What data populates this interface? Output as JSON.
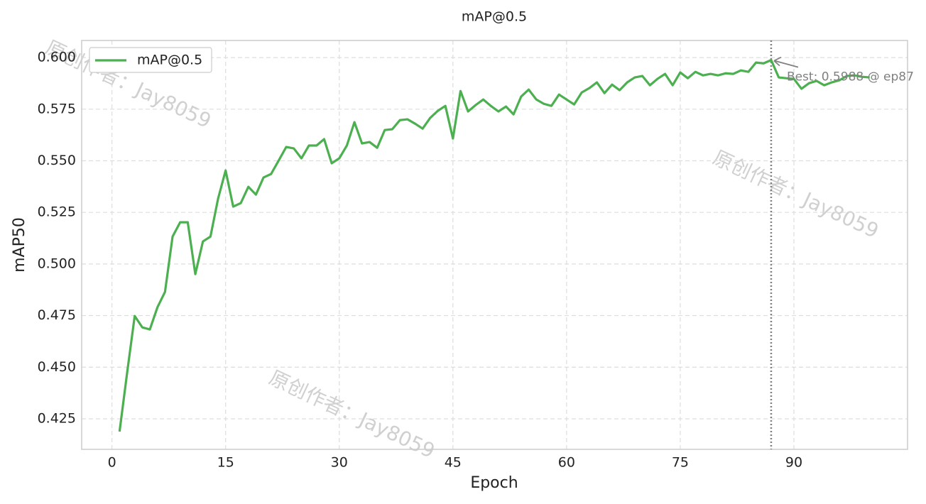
{
  "chart_data": {
    "type": "line",
    "title": "mAP@0.5",
    "xlabel": "Epoch",
    "ylabel": "mAP50",
    "x": [
      1,
      2,
      3,
      4,
      5,
      6,
      7,
      8,
      9,
      10,
      11,
      12,
      13,
      14,
      15,
      16,
      17,
      18,
      19,
      20,
      21,
      22,
      23,
      24,
      25,
      26,
      27,
      28,
      29,
      30,
      31,
      32,
      33,
      34,
      35,
      36,
      37,
      38,
      39,
      40,
      41,
      42,
      43,
      44,
      45,
      46,
      47,
      48,
      49,
      50,
      51,
      52,
      53,
      54,
      55,
      56,
      57,
      58,
      59,
      60,
      61,
      62,
      63,
      64,
      65,
      66,
      67,
      68,
      69,
      70,
      71,
      72,
      73,
      74,
      75,
      76,
      77,
      78,
      79,
      80,
      81,
      82,
      83,
      84,
      85,
      86,
      87,
      88,
      89,
      90,
      91,
      92,
      93,
      94,
      95,
      96,
      97,
      98,
      99,
      100
    ],
    "series": [
      {
        "name": "mAP@0.5",
        "color": "#4caf50",
        "values": [
          0.4188,
          0.4473,
          0.4748,
          0.4693,
          0.4683,
          0.479,
          0.4865,
          0.5133,
          0.5202,
          0.5202,
          0.4951,
          0.5109,
          0.5133,
          0.5316,
          0.5453,
          0.5278,
          0.5295,
          0.5374,
          0.5336,
          0.5419,
          0.5436,
          0.5501,
          0.5567,
          0.556,
          0.5512,
          0.5574,
          0.5574,
          0.5605,
          0.5488,
          0.5512,
          0.5574,
          0.5687,
          0.5584,
          0.5591,
          0.5563,
          0.5649,
          0.5653,
          0.5697,
          0.5701,
          0.568,
          0.5656,
          0.5708,
          0.5742,
          0.5766,
          0.5608,
          0.5838,
          0.5739,
          0.577,
          0.5797,
          0.5766,
          0.5739,
          0.5763,
          0.5725,
          0.5811,
          0.5845,
          0.5797,
          0.5776,
          0.5766,
          0.5821,
          0.5797,
          0.5773,
          0.5831,
          0.5852,
          0.588,
          0.5828,
          0.5869,
          0.5842,
          0.588,
          0.5904,
          0.5911,
          0.5866,
          0.5897,
          0.5921,
          0.5866,
          0.5928,
          0.59,
          0.5931,
          0.5914,
          0.5921,
          0.5914,
          0.5924,
          0.5921,
          0.5938,
          0.5931,
          0.5976,
          0.5972,
          0.5988,
          0.5904,
          0.59,
          0.5897,
          0.5849,
          0.5876,
          0.5887,
          0.5866,
          0.588,
          0.589,
          0.5911,
          0.5914,
          0.5907,
          0.5904
        ]
      }
    ],
    "xlim": [
      -4.0,
      105.0
    ],
    "ylim": [
      0.4102,
      0.6083
    ],
    "xticks": [
      0,
      15,
      30,
      45,
      60,
      75,
      90
    ],
    "yticks": [
      0.425,
      {
        "value": 0.45,
        "label": "0.450"
      },
      0.475,
      {
        "value": 0.5,
        "label": "0.500"
      },
      0.525,
      {
        "value": 0.55,
        "label": "0.550"
      },
      0.575,
      {
        "value": 0.6,
        "label": "0.600"
      }
    ],
    "grid": true,
    "legend": "upper left",
    "vline": {
      "x": 87,
      "color": "#808080"
    },
    "annotation": {
      "text": "Best: 0.5988 @ ep87",
      "x": 87,
      "y": 0.5988
    },
    "watermark": "原创作者：Jay8059"
  }
}
